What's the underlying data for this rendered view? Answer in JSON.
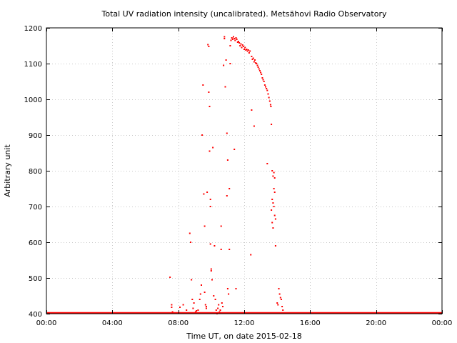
{
  "chart_data": {
    "type": "scatter",
    "title": "Total UV radiation intensity (uncalibrated). Metsähovi Radio Observatory",
    "xlabel": "Time UT, on date 2015-02-18",
    "ylabel": "Arbitrary unit",
    "xlim": [
      0,
      24
    ],
    "ylim": [
      400,
      1200
    ],
    "x_ticks": [
      0,
      4,
      8,
      12,
      16,
      20,
      24
    ],
    "x_tick_labels": [
      "00:00",
      "04:00",
      "08:00",
      "12:00",
      "16:00",
      "20:00",
      "00:00"
    ],
    "y_ticks": [
      400,
      500,
      600,
      700,
      800,
      900,
      1000,
      1100,
      1200
    ],
    "y_tick_labels": [
      "400",
      "500",
      "600",
      "700",
      "800",
      "900",
      "1000",
      "1100",
      "1200"
    ],
    "grid": true,
    "marker_color": "#ff0000",
    "baseline": {
      "value": 400,
      "from_hour": 0,
      "to_hour": 24
    },
    "series": [
      {
        "points": [
          [
            7.5,
            502
          ],
          [
            7.6,
            425
          ],
          [
            7.6,
            418
          ],
          [
            7.65,
            405
          ],
          [
            8.1,
            418
          ],
          [
            8.3,
            425
          ],
          [
            8.5,
            410
          ],
          [
            8.6,
            402
          ],
          [
            8.7,
            625
          ],
          [
            8.75,
            600
          ],
          [
            8.8,
            495
          ],
          [
            8.85,
            440
          ],
          [
            8.9,
            415
          ],
          [
            8.95,
            430
          ],
          [
            9.05,
            405
          ],
          [
            9.1,
            408
          ],
          [
            9.2,
            410
          ],
          [
            9.3,
            440
          ],
          [
            9.35,
            455
          ],
          [
            9.4,
            480
          ],
          [
            9.45,
            900
          ],
          [
            9.5,
            1040
          ],
          [
            9.55,
            735
          ],
          [
            9.6,
            645
          ],
          [
            9.6,
            460
          ],
          [
            9.65,
            425
          ],
          [
            9.7,
            415
          ],
          [
            9.7,
            420
          ],
          [
            9.75,
            740
          ],
          [
            9.8,
            1153
          ],
          [
            9.85,
            1148
          ],
          [
            9.85,
            1020
          ],
          [
            9.9,
            855
          ],
          [
            9.9,
            980
          ],
          [
            9.95,
            720
          ],
          [
            9.95,
            700
          ],
          [
            9.95,
            595
          ],
          [
            10.0,
            525
          ],
          [
            10.0,
            520
          ],
          [
            10.05,
            495
          ],
          [
            10.1,
            865
          ],
          [
            10.15,
            450
          ],
          [
            10.2,
            590
          ],
          [
            10.25,
            440
          ],
          [
            10.3,
            410
          ],
          [
            10.35,
            400
          ],
          [
            10.4,
            415
          ],
          [
            10.45,
            425
          ],
          [
            10.5,
            405
          ],
          [
            10.55,
            410
          ],
          [
            10.6,
            645
          ],
          [
            10.6,
            580
          ],
          [
            10.65,
            430
          ],
          [
            10.7,
            420
          ],
          [
            10.75,
            1095
          ],
          [
            10.8,
            1170
          ],
          [
            10.8,
            1175
          ],
          [
            10.85,
            1035
          ],
          [
            10.9,
            1110
          ],
          [
            10.95,
            730
          ],
          [
            10.95,
            905
          ],
          [
            11.0,
            830
          ],
          [
            11.0,
            470
          ],
          [
            11.05,
            455
          ],
          [
            11.1,
            750
          ],
          [
            11.1,
            580
          ],
          [
            11.15,
            1100
          ],
          [
            11.15,
            1150
          ],
          [
            11.2,
            1165
          ],
          [
            11.25,
            1172
          ],
          [
            11.3,
            1168
          ],
          [
            11.35,
            1175
          ],
          [
            11.4,
            1170
          ],
          [
            11.4,
            860
          ],
          [
            11.45,
            1165
          ],
          [
            11.5,
            1172
          ],
          [
            11.5,
            470
          ],
          [
            11.55,
            1168
          ],
          [
            11.6,
            1160
          ],
          [
            11.65,
            1162
          ],
          [
            11.7,
            1158
          ],
          [
            11.75,
            1150
          ],
          [
            11.8,
            1155
          ],
          [
            11.85,
            1145
          ],
          [
            11.9,
            1152
          ],
          [
            11.95,
            1148
          ],
          [
            12.0,
            1140
          ],
          [
            12.05,
            1145
          ],
          [
            12.1,
            1138
          ],
          [
            12.15,
            1140
          ],
          [
            12.2,
            1135
          ],
          [
            12.25,
            1138
          ],
          [
            12.3,
            1130
          ],
          [
            12.35,
            1135
          ],
          [
            12.4,
            565
          ],
          [
            12.45,
            1120
          ],
          [
            12.45,
            970
          ],
          [
            12.5,
            1112
          ],
          [
            12.55,
            1115
          ],
          [
            12.6,
            925
          ],
          [
            12.6,
            1105
          ],
          [
            12.65,
            1110
          ],
          [
            12.7,
            1102
          ],
          [
            12.75,
            1100
          ],
          [
            12.8,
            1095
          ],
          [
            12.85,
            1090
          ],
          [
            12.9,
            1085
          ],
          [
            12.95,
            1080
          ],
          [
            13.0,
            1075
          ],
          [
            13.05,
            1070
          ],
          [
            13.1,
            1060
          ],
          [
            13.15,
            1055
          ],
          [
            13.2,
            1050
          ],
          [
            13.25,
            1040
          ],
          [
            13.3,
            1035
          ],
          [
            13.35,
            1030
          ],
          [
            13.4,
            1025
          ],
          [
            13.45,
            1015
          ],
          [
            13.5,
            1005
          ],
          [
            13.55,
            995
          ],
          [
            13.6,
            985
          ],
          [
            13.62,
            980
          ],
          [
            13.4,
            820
          ],
          [
            13.65,
            930
          ],
          [
            13.7,
            800
          ],
          [
            13.75,
            785
          ],
          [
            13.8,
            795
          ],
          [
            13.85,
            780
          ],
          [
            13.65,
            690
          ],
          [
            13.7,
            720
          ],
          [
            13.75,
            710
          ],
          [
            13.8,
            700
          ],
          [
            13.85,
            675
          ],
          [
            13.9,
            665
          ],
          [
            13.7,
            655
          ],
          [
            13.75,
            640
          ],
          [
            13.8,
            750
          ],
          [
            13.85,
            740
          ],
          [
            13.9,
            590
          ],
          [
            14.0,
            430
          ],
          [
            14.05,
            425
          ],
          [
            14.1,
            470
          ],
          [
            14.15,
            455
          ],
          [
            14.2,
            445
          ],
          [
            14.25,
            440
          ],
          [
            14.3,
            420
          ],
          [
            14.35,
            410
          ]
        ]
      }
    ]
  }
}
